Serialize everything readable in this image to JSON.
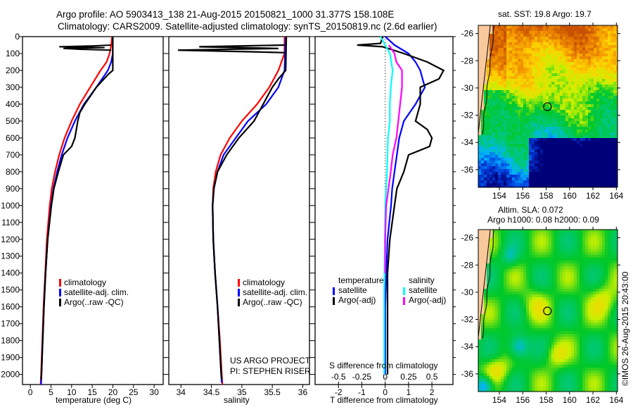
{
  "header": {
    "title_line1": "Argo profile: AO 5903413_138 21-Aug-2015 20150821_1000 31.377S 158.108E",
    "title_line2": "Climatology: CARS2009. Satellite-adjusted climatology: synTS_20150819.nc (2.6d earlier)"
  },
  "colors": {
    "climatology": "#ff0000",
    "satellite": "#0000ff",
    "argo": "#000000",
    "sal_satellite": "#00ffff",
    "sal_argo": "#ff00ff",
    "land": "#f9c99b"
  },
  "chart_data": [
    {
      "type": "line",
      "id": "temperature",
      "xlabel": "temperature (deg C)",
      "ylabel": "pressure",
      "xlim": [
        -1.9,
        32.2
      ],
      "ylim": [
        2060,
        0
      ],
      "xticks": [
        0,
        5,
        10,
        15,
        20,
        25,
        30
      ],
      "yticks": [
        0,
        100,
        200,
        300,
        400,
        500,
        600,
        700,
        800,
        900,
        1000,
        1100,
        1200,
        1300,
        1400,
        1500,
        1600,
        1700,
        1800,
        1900,
        2000
      ],
      "legend": [
        "climatology",
        "satellite-adj. clim.",
        "Argo(..raw -QC)"
      ],
      "series": [
        {
          "name": "climatology",
          "color": "#ff0000",
          "p": [
            0,
            50,
            100,
            150,
            200,
            300,
            400,
            500,
            600,
            700,
            800,
            900,
            1000,
            1200,
            1400,
            1600,
            1800,
            2000,
            2060
          ],
          "v": [
            19.8,
            19.6,
            19.2,
            18.5,
            17,
            14.5,
            12,
            10,
            8.3,
            7,
            6,
            5.2,
            4.7,
            4,
            3.6,
            3.2,
            2.9,
            2.6,
            2.5
          ]
        },
        {
          "name": "satellite-adj. clim.",
          "color": "#0000ff",
          "p": [
            0,
            100,
            150,
            200,
            300,
            400,
            500,
            600,
            700,
            800,
            900,
            1000,
            1200,
            1400,
            1600,
            1800,
            2000,
            2060
          ],
          "v": [
            20,
            20,
            19.6,
            18.8,
            16,
            13,
            10.8,
            9,
            7.6,
            6.5,
            5.6,
            5,
            4.2,
            3.7,
            3.3,
            3,
            2.7,
            2.6
          ]
        },
        {
          "name": "Argo(..raw -QC)",
          "color": "#000000",
          "p": [
            0,
            200,
            220,
            300,
            400,
            450,
            500,
            600,
            650,
            700,
            800,
            900,
            1000,
            1200,
            1400,
            1600,
            1800,
            2000,
            2030
          ],
          "v": [
            20,
            20,
            19,
            16,
            13.2,
            12,
            11.5,
            10.8,
            10,
            8,
            6.8,
            5.7,
            5.1,
            4.2,
            3.7,
            3.3,
            3,
            2.7,
            2.6
          ]
        },
        {
          "name": "Argo raw spikes",
          "color": "#000000",
          "p": [
            50,
            55,
            60,
            65,
            70,
            75,
            80
          ],
          "v": [
            19.5,
            15,
            7,
            18,
            8,
            12,
            19.6
          ]
        }
      ]
    },
    {
      "type": "line",
      "id": "salinity",
      "xlabel": "salinity",
      "xlim": [
        33.8,
        36.11
      ],
      "ylim": [
        2060,
        0
      ],
      "xticks": [
        34,
        34.5,
        35,
        35.5,
        36
      ],
      "legend": [
        "climatology",
        "satellite-adj. clim.",
        "Argo(..raw -QC)"
      ],
      "annotation": [
        "US ARGO PROJECT",
        "PI: STEPHEN RISER"
      ],
      "series": [
        {
          "name": "climatology",
          "color": "#ff0000",
          "p": [
            0,
            100,
            200,
            300,
            400,
            500,
            600,
            700,
            800,
            900,
            1000,
            1200,
            1400,
            1600,
            1800,
            2000,
            2060
          ],
          "v": [
            35.7,
            35.7,
            35.6,
            35.45,
            35.25,
            35.0,
            34.8,
            34.65,
            34.57,
            34.53,
            34.52,
            34.53,
            34.56,
            34.6,
            34.64,
            34.67,
            34.68
          ]
        },
        {
          "name": "satellite-adj. clim.",
          "color": "#0000ff",
          "p": [
            0,
            200,
            300,
            400,
            500,
            600,
            700,
            800,
            900,
            1000,
            1200,
            1400,
            1600,
            1800,
            2000,
            2050
          ],
          "v": [
            35.72,
            35.7,
            35.6,
            35.4,
            35.1,
            34.9,
            34.7,
            34.6,
            34.54,
            34.52,
            34.53,
            34.56,
            34.6,
            34.63,
            34.66,
            34.67
          ]
        },
        {
          "name": "Argo(..raw -QC)",
          "color": "#000000",
          "p": [
            0,
            200,
            250,
            300,
            400,
            500,
            600,
            700,
            800,
            900,
            1000,
            1200,
            1400,
            1600,
            1800,
            2000,
            2030
          ],
          "v": [
            35.73,
            35.72,
            35.6,
            35.5,
            35.35,
            35.2,
            34.95,
            34.75,
            34.6,
            34.54,
            34.52,
            34.53,
            34.56,
            34.6,
            34.63,
            34.66,
            34.67
          ]
        },
        {
          "name": "Argo raw spikes",
          "color": "#000000",
          "p": [
            50,
            60,
            70,
            80,
            90,
            95
          ],
          "v": [
            35.7,
            34.3,
            35.6,
            33.95,
            35.2,
            35.7
          ]
        }
      ]
    },
    {
      "type": "line",
      "id": "difference",
      "xlabel": "T difference from climatology",
      "x2label": "S difference from climatology",
      "xlim": [
        -3,
        2.9
      ],
      "ylim": [
        2060,
        0
      ],
      "xticks": [
        -2,
        -1,
        0,
        1,
        2
      ],
      "x2ticks": [
        -0.5,
        -0.25,
        0,
        0.25,
        0.5
      ],
      "x2tick_labels": [
        "-0.5",
        "-0.25",
        "0",
        "0.25",
        "0.5"
      ],
      "legend_headers": [
        "temperature",
        "salinity"
      ],
      "legend": [
        "satellite",
        "Argo(-adj)",
        "satellite",
        "Argo(-adj)"
      ],
      "series": [
        {
          "name": "T satellite",
          "axis": "T",
          "color": "#0000ff",
          "p": [
            0,
            50,
            100,
            150,
            200,
            300,
            400,
            500,
            600,
            700,
            800,
            900,
            1000,
            1200,
            1400,
            1600,
            2000
          ],
          "v": [
            0,
            0.4,
            1.0,
            1.3,
            1.5,
            1.7,
            1.3,
            0.8,
            0.6,
            0.5,
            0.4,
            0.3,
            0.25,
            0.1,
            0.05,
            0,
            0
          ]
        },
        {
          "name": "T Argo(-adj)",
          "axis": "T",
          "color": "#000000",
          "p": [
            0,
            40,
            50,
            60,
            100,
            150,
            200,
            250,
            300,
            400,
            500,
            550,
            600,
            650,
            700,
            800,
            900,
            1000,
            1200,
            1400,
            1600,
            2000
          ],
          "v": [
            -0.1,
            -0.2,
            -1.2,
            -0.1,
            0.8,
            1.8,
            2.5,
            2.3,
            1.5,
            1.5,
            1.3,
            1.8,
            2.0,
            1.9,
            1.0,
            0.8,
            0.5,
            0.4,
            0.2,
            0.1,
            0.1,
            0.1
          ]
        },
        {
          "name": "S satellite",
          "axis": "S",
          "color": "#00ffff",
          "p": [
            0,
            100,
            200,
            300,
            400,
            500,
            600,
            800,
            1000,
            1500,
            2000
          ],
          "v": [
            -0.05,
            0.05,
            0.08,
            0.06,
            0.05,
            0.05,
            0.03,
            0.02,
            0,
            -0.01,
            -0.01
          ]
        },
        {
          "name": "S Argo(-adj)",
          "axis": "S",
          "color": "#ff00ff",
          "p": [
            50,
            100,
            150,
            200,
            300,
            400,
            500,
            600,
            700,
            800,
            1000,
            1200,
            1400
          ],
          "v": [
            0.04,
            0.1,
            0.12,
            0.18,
            0.18,
            0.16,
            0.14,
            0.12,
            0.08,
            0.06,
            0.01,
            0,
            0
          ]
        }
      ]
    },
    {
      "type": "heatmap",
      "id": "sst_map",
      "title": "sat. SST: 19.8 Argo: 19.7",
      "xticks": [
        154,
        156,
        158,
        160,
        162,
        164
      ],
      "yticks": [
        -26,
        -28,
        -30,
        -32,
        -34,
        -36
      ],
      "xlim": [
        152.2,
        164.1
      ],
      "ylim": [
        -37.3,
        -25.4
      ],
      "argo_position": [
        158.108,
        -31.377
      ]
    },
    {
      "type": "heatmap",
      "id": "sla_map",
      "title_line1": "Altim. SLA: 0.072",
      "title_line2": "Argo h1000: 0.08 h2000: 0.09",
      "xticks": [
        154,
        156,
        158,
        160,
        162,
        164
      ],
      "yticks": [
        -26,
        -28,
        -30,
        -32,
        -34,
        -36
      ],
      "xlim": [
        152.2,
        164.1
      ],
      "ylim": [
        -37.3,
        -25.4
      ],
      "argo_position": [
        158.108,
        -31.377
      ],
      "credit": "©IMOS 26-Aug-2015 20:43:00"
    }
  ]
}
